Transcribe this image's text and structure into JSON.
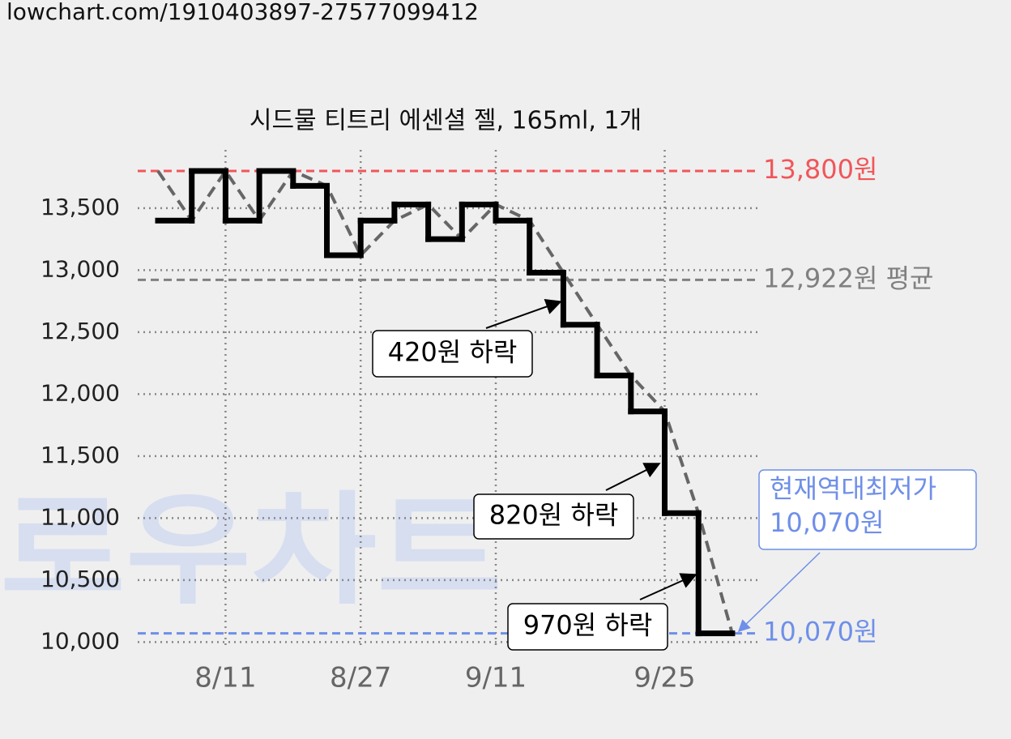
{
  "header": {
    "url": "lowchart.com/1910403897-27577099412"
  },
  "watermark": "로우차트",
  "chart_data": {
    "type": "step-line",
    "title": "시드물 티트리 에센셜 젤, 165ml, 1개",
    "categories": [
      null,
      null,
      "8/11",
      null,
      null,
      null,
      "8/27",
      null,
      null,
      null,
      "9/11",
      null,
      null,
      null,
      null,
      "9/25",
      null,
      null
    ],
    "series": [
      {
        "color": "#000000",
        "values": [
          13800,
          13400,
          13800,
          13400,
          13800,
          13680,
          13120,
          13400,
          13530,
          13250,
          13530,
          13400,
          12980,
          12560,
          12150,
          11860,
          11040,
          10070
        ]
      }
    ],
    "trend_color": "#666666",
    "ylim": [
      9950,
      13970
    ],
    "yticks": [
      {
        "value": 10000,
        "label": "10,000"
      },
      {
        "value": 10500,
        "label": "10,500"
      },
      {
        "value": 11000,
        "label": "11,000"
      },
      {
        "value": 11500,
        "label": "11,500"
      },
      {
        "value": 12000,
        "label": "12,000"
      },
      {
        "value": 12500,
        "label": "12,500"
      },
      {
        "value": 13000,
        "label": "13,000"
      },
      {
        "value": 13500,
        "label": "13,500"
      }
    ],
    "grid": true,
    "reference_lines": [
      {
        "value": 13800,
        "label": "13,800원",
        "color": "#f0565a"
      },
      {
        "value": 12922,
        "label": "12,922원 평균",
        "color": "#808080"
      },
      {
        "value": 10070,
        "label": "10,070원",
        "color": "#6f8fe8"
      }
    ],
    "annotations": [
      {
        "text": "420원 하락"
      },
      {
        "text": "820원 하락"
      },
      {
        "text": "970원 하락"
      }
    ],
    "callout": {
      "lines": [
        "현재역대최저가",
        "10,070원"
      ],
      "color": "#6f8fe8"
    }
  }
}
